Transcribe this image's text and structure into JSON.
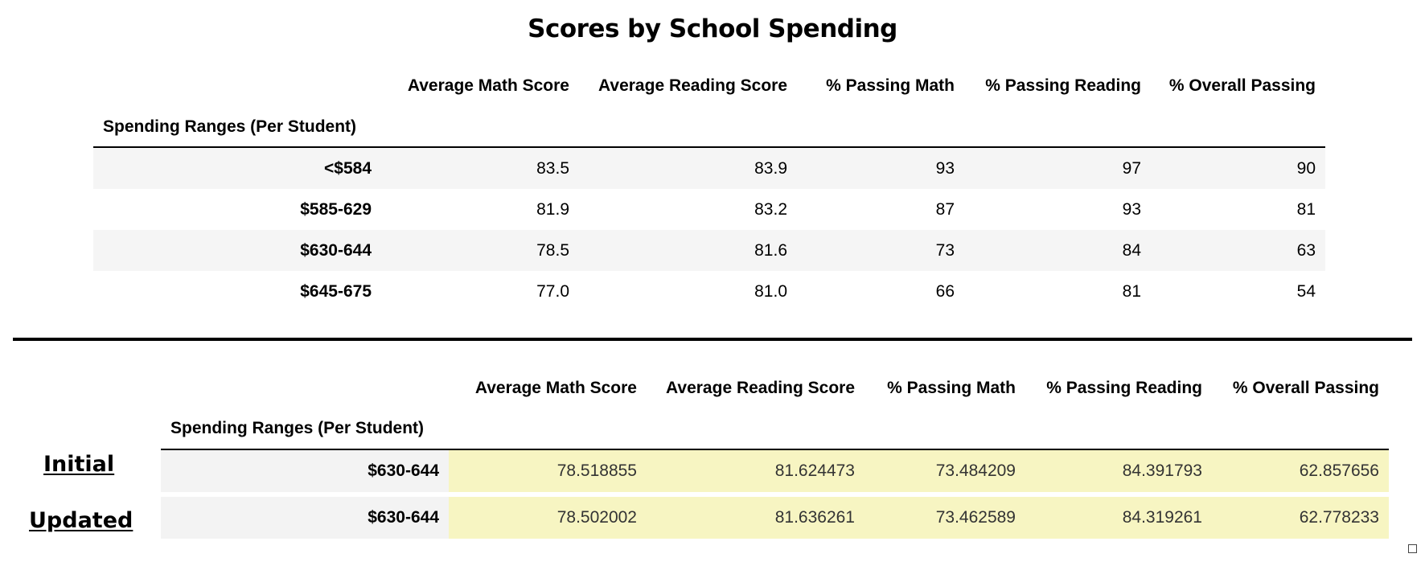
{
  "title": "Scores by School Spending",
  "index_label": "Spending Ranges (Per Student)",
  "columns": [
    "Average Math Score",
    "Average Reading Score",
    "% Passing Math",
    "% Passing Reading",
    "% Overall Passing"
  ],
  "summary_table": {
    "rows": [
      {
        "range": "<$584",
        "values": [
          "83.5",
          "83.9",
          "93",
          "97",
          "90"
        ]
      },
      {
        "range": "$585-629",
        "values": [
          "81.9",
          "83.2",
          "87",
          "93",
          "81"
        ]
      },
      {
        "range": "$630-644",
        "values": [
          "78.5",
          "81.6",
          "73",
          "84",
          "63"
        ]
      },
      {
        "range": "$645-675",
        "values": [
          "77.0",
          "81.0",
          "66",
          "81",
          "54"
        ]
      }
    ]
  },
  "comparison": {
    "labels": {
      "initial": "Initial",
      "updated": "Updated"
    },
    "rows": [
      {
        "range": "$630-644",
        "values": [
          "78.518855",
          "81.624473",
          "73.484209",
          "84.391793",
          "62.857656"
        ]
      },
      {
        "range": "$630-644",
        "values": [
          "78.502002",
          "81.636261",
          "73.462589",
          "84.319261",
          "62.778233"
        ]
      }
    ],
    "highlight_color": "#f7f5c2"
  }
}
